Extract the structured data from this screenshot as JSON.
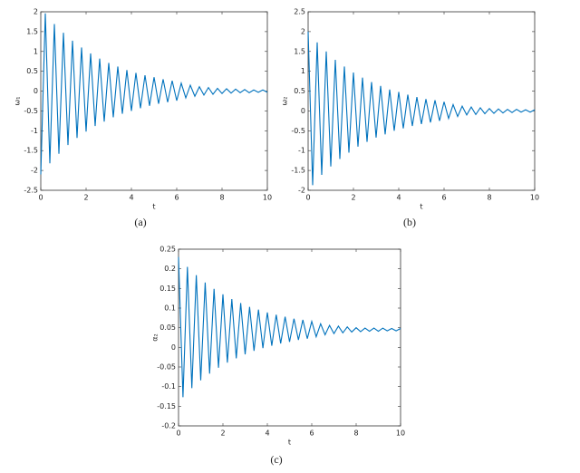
{
  "chart_data": [
    {
      "type": "line",
      "caption": "(a)",
      "x_label": "t",
      "y_label": "ω₁",
      "xlim": [
        0,
        10
      ],
      "xticks": [
        0,
        2,
        4,
        6,
        8,
        10
      ],
      "ylim": [
        -2.5,
        2
      ],
      "yticks": [
        -2.5,
        -2,
        -1.5,
        -1,
        -0.5,
        0,
        0.5,
        1,
        1.5,
        2
      ],
      "x": [
        0,
        0.2,
        0.4,
        0.6,
        0.8,
        1,
        1.2,
        1.4,
        1.6,
        1.8,
        2,
        2.2,
        2.4,
        2.6,
        2.8,
        3,
        3.2,
        3.4,
        3.6,
        3.8,
        4,
        4.2,
        4.4,
        4.6,
        4.8,
        5,
        5.2,
        5.4,
        5.6,
        5.8,
        6,
        6.2,
        6.4,
        6.6,
        6.8,
        7,
        7.2,
        7.4,
        7.6,
        7.8,
        8,
        8.2,
        8.4,
        8.6,
        8.8,
        9,
        9.2,
        9.4,
        9.6,
        9.8,
        10
      ],
      "series": [
        {
          "color": "#0072bd",
          "values": [
            -2.1,
            1.96,
            -1.82,
            1.69,
            -1.58,
            1.47,
            -1.36,
            1.27,
            -1.18,
            1.1,
            -1.02,
            0.95,
            -0.88,
            0.82,
            -0.77,
            0.71,
            -0.66,
            0.62,
            -0.57,
            0.53,
            -0.5,
            0.46,
            -0.43,
            0.4,
            -0.37,
            0.35,
            -0.32,
            0.3,
            -0.28,
            0.26,
            -0.24,
            0.2,
            -0.17,
            0.15,
            -0.13,
            0.11,
            -0.1,
            0.09,
            -0.08,
            0.07,
            -0.06,
            0.06,
            -0.05,
            0.05,
            -0.04,
            0.04,
            -0.04,
            0.03,
            -0.03,
            0.03,
            -0.03
          ]
        }
      ]
    },
    {
      "type": "line",
      "caption": "(b)",
      "x_label": "t",
      "y_label": "ω₂",
      "xlim": [
        0,
        10
      ],
      "xticks": [
        0,
        2,
        4,
        6,
        8,
        10
      ],
      "ylim": [
        -2,
        2.5
      ],
      "yticks": [
        -2,
        -1.5,
        -1,
        -0.5,
        0,
        0.5,
        1,
        1.5,
        2,
        2.5
      ],
      "x": [
        0,
        0.2,
        0.4,
        0.6,
        0.8,
        1,
        1.2,
        1.4,
        1.6,
        1.8,
        2,
        2.2,
        2.4,
        2.6,
        2.8,
        3,
        3.2,
        3.4,
        3.6,
        3.8,
        4,
        4.2,
        4.4,
        4.6,
        4.8,
        5,
        5.2,
        5.4,
        5.6,
        5.8,
        6,
        6.2,
        6.4,
        6.6,
        6.8,
        7,
        7.2,
        7.4,
        7.6,
        7.8,
        8,
        8.2,
        8.4,
        8.6,
        8.8,
        9,
        9.2,
        9.4,
        9.6,
        9.8,
        10
      ],
      "series": [
        {
          "color": "#0072bd",
          "values": [
            2.0,
            -1.87,
            1.73,
            -1.61,
            1.5,
            -1.4,
            1.29,
            -1.21,
            1.12,
            -1.05,
            0.97,
            -0.9,
            0.84,
            -0.78,
            0.73,
            -0.67,
            0.63,
            -0.59,
            0.54,
            -0.5,
            0.48,
            -0.44,
            0.41,
            -0.38,
            0.35,
            -0.33,
            0.3,
            -0.29,
            0.27,
            -0.25,
            0.23,
            -0.19,
            0.16,
            -0.14,
            0.12,
            -0.1,
            0.1,
            -0.09,
            0.08,
            -0.07,
            0.06,
            -0.06,
            0.05,
            -0.05,
            0.04,
            -0.04,
            0.04,
            -0.03,
            0.03,
            -0.03,
            0.03
          ]
        }
      ]
    },
    {
      "type": "line",
      "caption": "(c)",
      "x_label": "t",
      "y_label": "α₂",
      "xlim": [
        0,
        10
      ],
      "xticks": [
        0,
        2,
        4,
        6,
        8,
        10
      ],
      "ylim": [
        -0.2,
        0.25
      ],
      "yticks": [
        -0.2,
        -0.15,
        -0.1,
        -0.05,
        0,
        0.05,
        0.1,
        0.15,
        0.2,
        0.25
      ],
      "x": [
        0,
        0.2,
        0.4,
        0.6,
        0.8,
        1,
        1.2,
        1.4,
        1.6,
        1.8,
        2,
        2.2,
        2.4,
        2.6,
        2.8,
        3,
        3.2,
        3.4,
        3.6,
        3.8,
        4,
        4.2,
        4.4,
        4.6,
        4.8,
        5,
        5.2,
        5.4,
        5.6,
        5.8,
        6,
        6.2,
        6.4,
        6.6,
        6.8,
        7,
        7.2,
        7.4,
        7.6,
        7.8,
        8,
        8.2,
        8.4,
        8.6,
        8.8,
        9,
        9.2,
        9.4,
        9.6,
        9.8,
        10
      ],
      "series": [
        {
          "color": "#0072bd",
          "values": [
            0.23,
            -0.127,
            0.205,
            -0.104,
            0.184,
            -0.084,
            0.165,
            -0.067,
            0.149,
            -0.052,
            0.135,
            -0.039,
            0.123,
            -0.028,
            0.113,
            -0.018,
            0.103,
            -0.009,
            0.096,
            -0.002,
            0.089,
            0.004,
            0.083,
            0.01,
            0.078,
            0.014,
            0.073,
            0.019,
            0.07,
            0.022,
            0.066,
            0.027,
            0.06,
            0.032,
            0.056,
            0.035,
            0.054,
            0.037,
            0.052,
            0.039,
            0.05,
            0.04,
            0.049,
            0.041,
            0.049,
            0.041,
            0.049,
            0.042,
            0.048,
            0.042,
            0.048
          ]
        }
      ]
    }
  ]
}
